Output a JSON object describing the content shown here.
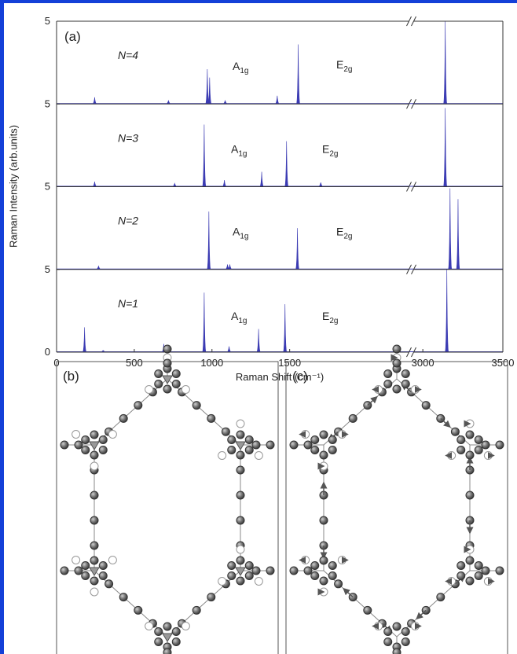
{
  "chart_data": {
    "type": "spectrum",
    "panel_label": "(a)",
    "xlabel": "Raman Shift (cm⁻¹)",
    "ylabel": "Raman Intensity (arb.units)",
    "xlim": [
      0,
      3500
    ],
    "xbreak": [
      2250,
      2960
    ],
    "xticks": [
      0,
      500,
      1000,
      1500,
      3000,
      3500
    ],
    "ylim": [
      0,
      1
    ],
    "series": [
      {
        "name": "N=4",
        "color": "#3b3bb3",
        "x": [
          245,
          720,
          970,
          985,
          1085,
          1420,
          1555,
          3140
        ],
        "values": [
          0.08,
          0.04,
          0.42,
          0.32,
          0.04,
          0.1,
          0.72,
          1.0
        ],
        "yticks": [
          {
            "value": 0,
            "label": "5"
          },
          {
            "value": 1,
            "label": "5"
          }
        ],
        "annotations": [
          {
            "text": "A",
            "sub": "1g"
          },
          {
            "text": "E",
            "sub": "2g"
          }
        ]
      },
      {
        "name": "N=3",
        "color": "#3b3bb3",
        "x": [
          245,
          760,
          950,
          1080,
          1320,
          1480,
          1700,
          3140
        ],
        "values": [
          0.06,
          0.04,
          0.75,
          0.08,
          0.18,
          0.55,
          0.05,
          0.95
        ],
        "yticks": [
          {
            "value": 0,
            "label": "5"
          }
        ],
        "annotations": [
          {
            "text": "A",
            "sub": "1g"
          },
          {
            "text": "E",
            "sub": "2g"
          }
        ]
      },
      {
        "name": "N=2",
        "color": "#3b3bb3",
        "x": [
          270,
          980,
          1100,
          1115,
          1550,
          3170,
          3220
        ],
        "values": [
          0.04,
          0.7,
          0.06,
          0.06,
          0.5,
          0.98,
          0.85
        ],
        "yticks": [
          {
            "value": 0,
            "label": "5"
          }
        ],
        "annotations": [
          {
            "text": "A",
            "sub": "1g"
          },
          {
            "text": "E",
            "sub": "2g"
          }
        ]
      },
      {
        "name": "N=1",
        "color": "#3b3bb3",
        "x": [
          180,
          300,
          690,
          950,
          1110,
          1300,
          1470,
          3150
        ],
        "values": [
          0.3,
          0.02,
          0.1,
          0.72,
          0.07,
          0.28,
          0.58,
          1.0
        ],
        "yticks": [
          0
        ],
        "annotations": [
          {
            "text": "A",
            "sub": "1g"
          },
          {
            "text": "E",
            "sub": "2g"
          }
        ]
      }
    ]
  },
  "diagram_labels": [
    "(b)",
    "(c)"
  ]
}
